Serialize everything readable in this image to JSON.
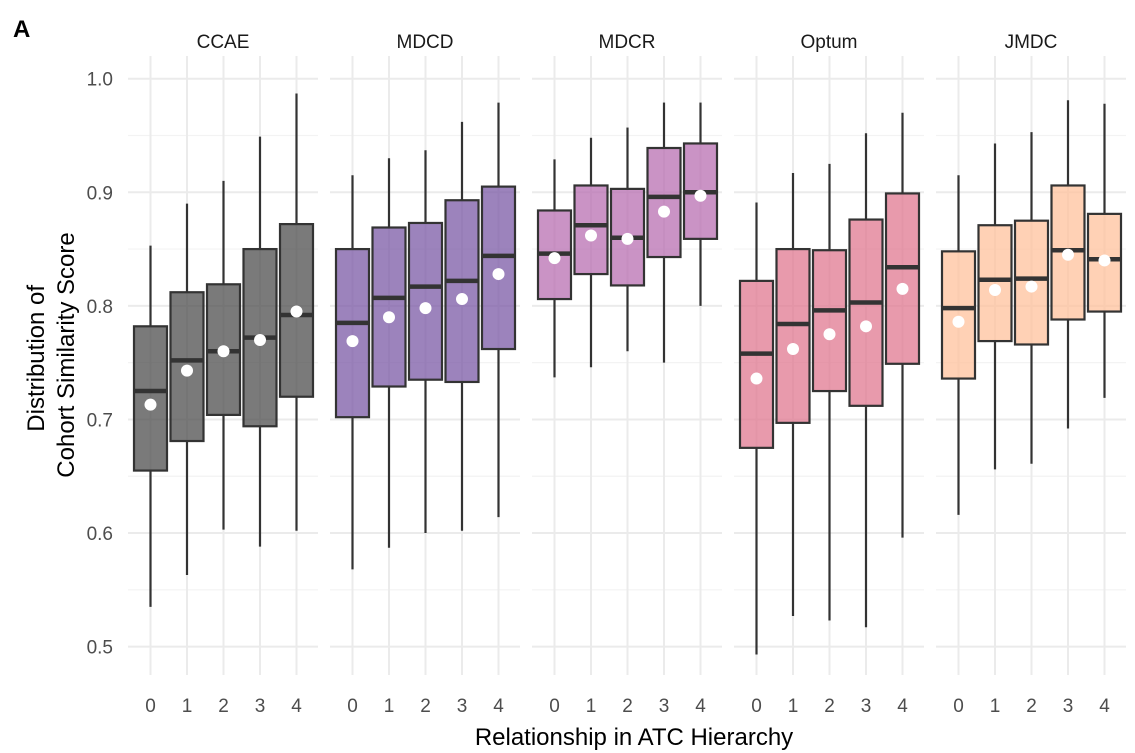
{
  "panel_tag": "A",
  "colors": {
    "CCAE": "#4d4d4d",
    "MDCD": "#7b5aa6",
    "MDCR": "#b86fb1",
    "Optum": "#e07890",
    "JMDC": "#ffc19c"
  },
  "chart_data": {
    "type": "box",
    "title": "",
    "xlabel": "Relationship in ATC Hierarchy",
    "ylabel_lines": [
      "Distribution of",
      "Cohort Similarity Score"
    ],
    "ylim": [
      0.475,
      1.02
    ],
    "y_ticks": [
      0.5,
      0.6,
      0.7,
      0.8,
      0.9,
      1.0
    ],
    "y_tick_labels": [
      "0.5",
      "0.6",
      "0.7",
      "0.8",
      "0.9",
      "1.0"
    ],
    "x_categories": [
      "0",
      "1",
      "2",
      "3",
      "4"
    ],
    "grid": true,
    "facets": [
      {
        "name": "CCAE",
        "boxes": [
          {
            "x": "0",
            "min": 0.535,
            "q1": 0.655,
            "median": 0.725,
            "q3": 0.782,
            "max": 0.853,
            "mean": 0.713
          },
          {
            "x": "1",
            "min": 0.563,
            "q1": 0.681,
            "median": 0.752,
            "q3": 0.812,
            "max": 0.89,
            "mean": 0.743
          },
          {
            "x": "2",
            "min": 0.603,
            "q1": 0.704,
            "median": 0.76,
            "q3": 0.819,
            "max": 0.91,
            "mean": 0.76
          },
          {
            "x": "3",
            "min": 0.588,
            "q1": 0.694,
            "median": 0.772,
            "q3": 0.85,
            "max": 0.949,
            "mean": 0.77
          },
          {
            "x": "4",
            "min": 0.602,
            "q1": 0.72,
            "median": 0.792,
            "q3": 0.872,
            "max": 0.987,
            "mean": 0.795
          }
        ]
      },
      {
        "name": "MDCD",
        "boxes": [
          {
            "x": "0",
            "min": 0.568,
            "q1": 0.702,
            "median": 0.785,
            "q3": 0.85,
            "max": 0.915,
            "mean": 0.769
          },
          {
            "x": "1",
            "min": 0.587,
            "q1": 0.729,
            "median": 0.807,
            "q3": 0.869,
            "max": 0.93,
            "mean": 0.79
          },
          {
            "x": "2",
            "min": 0.6,
            "q1": 0.735,
            "median": 0.817,
            "q3": 0.873,
            "max": 0.937,
            "mean": 0.798
          },
          {
            "x": "3",
            "min": 0.602,
            "q1": 0.733,
            "median": 0.822,
            "q3": 0.893,
            "max": 0.962,
            "mean": 0.806
          },
          {
            "x": "4",
            "min": 0.614,
            "q1": 0.762,
            "median": 0.844,
            "q3": 0.905,
            "max": 0.979,
            "mean": 0.828
          }
        ]
      },
      {
        "name": "MDCR",
        "boxes": [
          {
            "x": "0",
            "min": 0.737,
            "q1": 0.806,
            "median": 0.846,
            "q3": 0.884,
            "max": 0.929,
            "mean": 0.842
          },
          {
            "x": "1",
            "min": 0.746,
            "q1": 0.828,
            "median": 0.871,
            "q3": 0.906,
            "max": 0.948,
            "mean": 0.862
          },
          {
            "x": "2",
            "min": 0.76,
            "q1": 0.818,
            "median": 0.86,
            "q3": 0.903,
            "max": 0.957,
            "mean": 0.859
          },
          {
            "x": "3",
            "min": 0.75,
            "q1": 0.843,
            "median": 0.896,
            "q3": 0.939,
            "max": 0.979,
            "mean": 0.883
          },
          {
            "x": "4",
            "min": 0.8,
            "q1": 0.859,
            "median": 0.9,
            "q3": 0.943,
            "max": 0.979,
            "mean": 0.897
          }
        ]
      },
      {
        "name": "Optum",
        "boxes": [
          {
            "x": "0",
            "min": 0.493,
            "q1": 0.675,
            "median": 0.758,
            "q3": 0.822,
            "max": 0.891,
            "mean": 0.736
          },
          {
            "x": "1",
            "min": 0.527,
            "q1": 0.697,
            "median": 0.784,
            "q3": 0.85,
            "max": 0.917,
            "mean": 0.762
          },
          {
            "x": "2",
            "min": 0.523,
            "q1": 0.725,
            "median": 0.796,
            "q3": 0.849,
            "max": 0.925,
            "mean": 0.775
          },
          {
            "x": "3",
            "min": 0.517,
            "q1": 0.712,
            "median": 0.803,
            "q3": 0.876,
            "max": 0.952,
            "mean": 0.782
          },
          {
            "x": "4",
            "min": 0.596,
            "q1": 0.749,
            "median": 0.834,
            "q3": 0.899,
            "max": 0.97,
            "mean": 0.815
          }
        ]
      },
      {
        "name": "JMDC",
        "boxes": [
          {
            "x": "0",
            "min": 0.616,
            "q1": 0.736,
            "median": 0.798,
            "q3": 0.848,
            "max": 0.915,
            "mean": 0.786
          },
          {
            "x": "1",
            "min": 0.656,
            "q1": 0.769,
            "median": 0.823,
            "q3": 0.871,
            "max": 0.943,
            "mean": 0.814
          },
          {
            "x": "2",
            "min": 0.661,
            "q1": 0.766,
            "median": 0.824,
            "q3": 0.875,
            "max": 0.953,
            "mean": 0.817
          },
          {
            "x": "3",
            "min": 0.692,
            "q1": 0.788,
            "median": 0.849,
            "q3": 0.906,
            "max": 0.981,
            "mean": 0.845
          },
          {
            "x": "4",
            "min": 0.719,
            "q1": 0.795,
            "median": 0.841,
            "q3": 0.881,
            "max": 0.978,
            "mean": 0.84
          }
        ]
      }
    ]
  }
}
